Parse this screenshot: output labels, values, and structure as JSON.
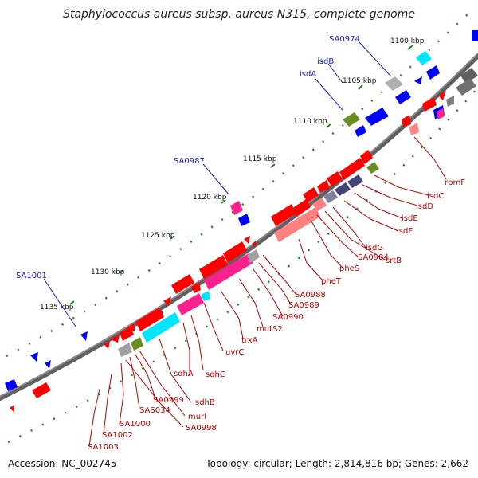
{
  "title": "Staphylococcus aureus subsp. aureus N315, complete genome",
  "footer": {
    "accession": "Accession: NC_002745",
    "summary": "Topology: circular; Length: 2,814,816 bp; Genes: 2,662"
  },
  "ticks": [
    "1100 kbp",
    "1105 kbp",
    "1110 kbp",
    "1115 kbp",
    "1120 kbp",
    "1125 kbp",
    "1130 kbp",
    "1135 kbp"
  ],
  "outer_labels": [
    "SA0974",
    "isdB",
    "isdA",
    "SA0987",
    "SA1001"
  ],
  "inner_labels": [
    "rpmF",
    "isdC",
    "isdD",
    "isdE",
    "isdF",
    "isdG",
    "srtB",
    "SA0984",
    "pheS",
    "pheT",
    "SA0988",
    "SA0989",
    "SA0990",
    "mutS2",
    "trxA",
    "uvrC",
    "sdhC",
    "sdhA",
    "sdhB",
    "murI",
    "SA0999",
    "SAS034",
    "SA0998",
    "SA1000",
    "SA1002",
    "SA1003"
  ],
  "colors": {
    "red": "#ff0000",
    "blue": "#0000ff",
    "cyan": "#00e5ff",
    "magenta": "#ff0090",
    "salmon": "#ff8080",
    "olive": "#6b8e23",
    "gray": "#a0a0a0",
    "khaki": "#b5b070",
    "slate": "#44447a",
    "backbone": "#5a5a5a",
    "tick": "#1a8a1a"
  }
}
